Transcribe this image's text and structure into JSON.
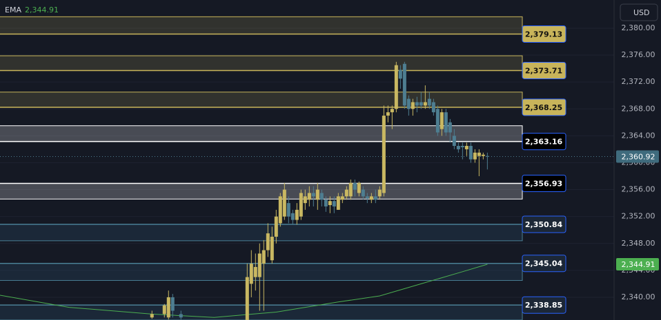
{
  "chart_data": {
    "type": "candlestick",
    "currency": "USD",
    "xlim": [
      -36.7,
      111.6
    ],
    "ylim": [
      2336.62,
      2384.19
    ],
    "yticks": [
      {
        "value": 2340,
        "label": "2,340.00"
      },
      {
        "value": 2344,
        "label": "2,344.00"
      },
      {
        "value": 2348,
        "label": "2,348.00"
      },
      {
        "value": 2352,
        "label": "2,352.00"
      },
      {
        "value": 2356,
        "label": "2,356.00"
      },
      {
        "value": 2360,
        "label": "2,360.00"
      },
      {
        "value": 2364,
        "label": "2,364.00"
      },
      {
        "value": 2368,
        "label": "2,368.00"
      },
      {
        "value": 2372,
        "label": "2,372.00"
      },
      {
        "value": 2376,
        "label": "2,376.00"
      },
      {
        "value": 2380,
        "label": "2,380.00"
      }
    ],
    "up_color": "#c9b862",
    "down_color": "#4e7e91",
    "x": [
      0,
      3,
      4,
      5,
      7,
      23,
      24,
      25,
      26,
      27,
      28,
      29,
      30,
      31,
      32,
      33,
      34,
      35,
      36,
      37,
      38,
      39,
      40,
      41,
      42,
      43,
      44,
      45,
      46,
      47,
      48,
      49,
      50,
      51,
      52,
      53,
      54,
      55,
      56,
      57,
      58,
      59,
      60,
      61,
      62,
      63,
      64,
      65,
      66,
      67,
      68,
      69,
      70,
      71,
      72,
      73,
      74,
      75,
      76,
      77,
      78,
      79,
      80,
      81
    ],
    "open": [
      2337,
      2337.5,
      2337,
      2340,
      2337.5,
      2336,
      2342,
      2343,
      2343,
      2345,
      2347,
      2345.5,
      2349,
      2351,
      2352,
      2354,
      2352.5,
      2351.5,
      2352,
      2354,
      2354.5,
      2355.5,
      2354.5,
      2355.5,
      2354.5,
      2353.7,
      2354.3,
      2353,
      2354.5,
      2355,
      2355,
      2357,
      2355.5,
      2356,
      2355,
      2354.5,
      2355,
      2355,
      2355.5,
      2367,
      2367.5,
      2368,
      2373.8,
      2374.7,
      2369.5,
      2368,
      2369,
      2369,
      2368.5,
      2369.5,
      2369,
      2368,
      2365,
      2367.5,
      2366,
      2364,
      2362.5,
      2362.5,
      2362,
      2362.5,
      2360.5,
      2361,
      2361,
      2361
    ],
    "high": [
      2338,
      2339,
      2341,
      2340.5,
      2338,
      2345,
      2347,
      2346.5,
      2348,
      2348.5,
      2351,
      2350.5,
      2353,
      2355.5,
      2357,
      2355,
      2353,
      2354,
      2356,
      2356,
      2356.5,
      2356.5,
      2357,
      2356,
      2355,
      2355,
      2355,
      2355.5,
      2355.5,
      2356.5,
      2357.5,
      2357.5,
      2357.2,
      2356.5,
      2355.5,
      2355.5,
      2356,
      2356.5,
      2368.5,
      2368.5,
      2368.5,
      2375,
      2374.5,
      2375,
      2370,
      2369.5,
      2369.8,
      2370.5,
      2371.5,
      2370.5,
      2369.5,
      2368.5,
      2368,
      2368,
      2366.5,
      2365,
      2363,
      2363,
      2363,
      2363,
      2362,
      2362,
      2361.5,
      2361.5
    ],
    "low": [
      2336.8,
      2337,
      2336.7,
      2337,
      2336.7,
      2336,
      2340,
      2341,
      2338,
      2338,
      2346,
      2345,
      2348,
      2350.5,
      2351.5,
      2351,
      2350.8,
      2350.8,
      2351.5,
      2353,
      2353.5,
      2353.5,
      2353,
      2353.5,
      2352.7,
      2352.5,
      2352.5,
      2353,
      2354,
      2354.5,
      2354.5,
      2355,
      2355,
      2354.5,
      2354,
      2354,
      2354,
      2354.5,
      2355,
      2366,
      2365,
      2367.5,
      2371,
      2368,
      2367,
      2367,
      2367.5,
      2368,
      2368,
      2368,
      2367,
      2364,
      2364,
      2364,
      2363,
      2362,
      2361.5,
      2360.5,
      2361,
      2360,
      2360,
      2358,
      2360.5,
      2359
    ],
    "close": [
      2337.5,
      2338.8,
      2340,
      2338,
      2337,
      2343,
      2345,
      2344.5,
      2346.5,
      2347,
      2349.5,
      2349,
      2352,
      2355,
      2356,
      2352,
      2351.5,
      2353,
      2355.5,
      2355,
      2355.5,
      2355,
      2356,
      2354.5,
      2353.5,
      2354.3,
      2353.5,
      2355,
      2355,
      2356,
      2357,
      2356,
      2357,
      2355,
      2354.7,
      2355,
      2354.5,
      2356,
      2367,
      2367.5,
      2368,
      2374.5,
      2372.5,
      2368.5,
      2368,
      2369,
      2368.5,
      2368.5,
      2369,
      2368.5,
      2367.5,
      2364.5,
      2367.5,
      2364.5,
      2364.5,
      2362.5,
      2362,
      2362.3,
      2362.5,
      2360.5,
      2361.5,
      2361.5,
      2361.2,
      2360.9
    ],
    "indicator": {
      "name": "EMA",
      "value_label": "2,344.91",
      "value": 2344.91,
      "color": "#4caf50",
      "x": [
        -36.7,
        -20,
        0,
        15,
        30,
        45,
        55,
        65,
        75,
        81
      ],
      "values": [
        2340.3,
        2338.5,
        2337.5,
        2337,
        2337.8,
        2339.3,
        2340.2,
        2342,
        2343.8,
        2344.91
      ]
    },
    "last_price": {
      "value": 2360.92,
      "label": "2,360.92"
    },
    "zones": [
      {
        "far": 2381.7,
        "level": {
          "value": 2379.13,
          "label": "2,379.13"
        },
        "style": "gold"
      },
      {
        "far": 2375.9,
        "level": {
          "value": 2373.71,
          "label": "2,373.71"
        },
        "style": "gold"
      },
      {
        "far": 2370.5,
        "level": {
          "value": 2368.25,
          "label": "2,368.25"
        },
        "style": "gold"
      },
      {
        "far": 2365.5,
        "level": {
          "value": 2363.16,
          "label": "2,363.16"
        },
        "style": "white"
      },
      {
        "far": 2354.6,
        "level": {
          "value": 2356.93,
          "label": "2,356.93"
        },
        "style": "white"
      },
      {
        "far": 2348.4,
        "level": {
          "value": 2350.84,
          "label": "2,350.84"
        },
        "style": "blue"
      },
      {
        "far": 2342.5,
        "level": {
          "value": 2345.04,
          "label": "2,345.04"
        },
        "style": "blue"
      },
      {
        "far": 2336.62,
        "level": {
          "value": 2338.85,
          "label": "2,338.85"
        },
        "style": "blue"
      }
    ]
  }
}
